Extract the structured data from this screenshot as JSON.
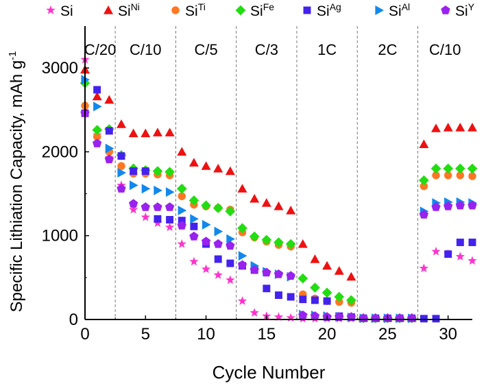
{
  "chart_data": {
    "type": "scatter",
    "xlabel": "Cycle Number",
    "ylabel": "Specific Lithiation Capacity, mAh g",
    "ylabel_sup": "-1",
    "xlim": [
      0,
      32
    ],
    "ylim": [
      0,
      3500
    ],
    "xticks": [
      0,
      5,
      10,
      15,
      20,
      25,
      30
    ],
    "yticks": [
      0,
      1000,
      2000,
      3000
    ],
    "x_tick_labels": [
      "0",
      "5",
      "10",
      "15",
      "20",
      "25",
      "30"
    ],
    "y_tick_labels": [
      "0",
      "1000",
      "2000",
      "3000"
    ],
    "grid": false,
    "legend_position": "top",
    "rate_regions": [
      {
        "label": "C/20",
        "start": 0,
        "end": 2.5
      },
      {
        "label": "C/10",
        "start": 2.5,
        "end": 7.5
      },
      {
        "label": "C/5",
        "start": 7.5,
        "end": 12.5
      },
      {
        "label": "C/3",
        "start": 12.5,
        "end": 17.5
      },
      {
        "label": "1C",
        "start": 17.5,
        "end": 22.5
      },
      {
        "label": "2C",
        "start": 22.5,
        "end": 27.5
      },
      {
        "label": "C/10",
        "start": 27.5,
        "end": 32
      }
    ],
    "series": [
      {
        "name": "Si",
        "sup": "",
        "marker": "star",
        "color": "#ff33cc",
        "x": [
          0,
          1,
          2,
          3,
          4,
          5,
          6,
          7,
          8,
          9,
          10,
          11,
          12,
          13,
          14,
          15,
          16,
          17,
          18,
          19,
          20,
          21,
          22,
          23,
          24,
          25,
          26,
          27,
          28,
          29,
          30,
          31,
          32
        ],
        "y": [
          3100,
          2200,
          1930,
          1600,
          1310,
          1220,
          1150,
          1100,
          900,
          690,
          600,
          530,
          470,
          220,
          80,
          40,
          30,
          20,
          10,
          10,
          10,
          10,
          10,
          10,
          10,
          10,
          10,
          10,
          610,
          810,
          780,
          750,
          700
        ]
      },
      {
        "name": "Si",
        "sup": "Ni",
        "marker": "triangle-up",
        "color": "#ee1111",
        "x": [
          0,
          1,
          2,
          3,
          4,
          5,
          6,
          7,
          8,
          9,
          10,
          11,
          12,
          13,
          14,
          15,
          16,
          17,
          18,
          19,
          20,
          21,
          22,
          23,
          24,
          25,
          26,
          27,
          28,
          29,
          30,
          31,
          32
        ],
        "y": [
          2980,
          2660,
          2620,
          2330,
          2220,
          2220,
          2230,
          2230,
          2000,
          1870,
          1830,
          1800,
          1770,
          1560,
          1440,
          1390,
          1350,
          1300,
          900,
          720,
          640,
          580,
          510,
          20,
          20,
          20,
          20,
          20,
          2090,
          2280,
          2290,
          2290,
          2290
        ]
      },
      {
        "name": "Si",
        "sup": "Ti",
        "marker": "circle",
        "color": "#ff7722",
        "x": [
          0,
          1,
          2,
          3,
          4,
          5,
          6,
          7,
          8,
          9,
          10,
          11,
          12,
          13,
          14,
          15,
          16,
          17,
          18,
          19,
          20,
          21,
          22,
          23,
          24,
          25,
          26,
          27,
          28,
          29,
          30,
          31,
          32
        ],
        "y": [
          2550,
          2180,
          2000,
          1830,
          1740,
          1740,
          1730,
          1720,
          1470,
          1370,
          1350,
          1330,
          1310,
          1040,
          980,
          930,
          890,
          870,
          300,
          250,
          220,
          210,
          200,
          15,
          15,
          15,
          15,
          15,
          1590,
          1720,
          1720,
          1720,
          1710
        ]
      },
      {
        "name": "Si",
        "sup": "Fe",
        "marker": "diamond",
        "color": "#22dd11",
        "x": [
          0,
          1,
          2,
          3,
          4,
          5,
          6,
          7,
          8,
          9,
          10,
          11,
          12,
          13,
          14,
          15,
          16,
          17,
          18,
          19,
          20,
          21,
          22,
          23,
          24,
          25,
          26,
          27,
          28,
          29,
          30,
          31,
          32
        ],
        "y": [
          2820,
          2260,
          2270,
          1960,
          1800,
          1780,
          1770,
          1760,
          1560,
          1420,
          1360,
          1330,
          1290,
          1090,
          990,
          950,
          920,
          900,
          490,
          380,
          320,
          270,
          230,
          15,
          15,
          15,
          15,
          15,
          1660,
          1800,
          1800,
          1800,
          1800
        ]
      },
      {
        "name": "Si",
        "sup": "Ag",
        "marker": "square",
        "color": "#4422ee",
        "x": [
          0,
          1,
          2,
          3,
          4,
          5,
          6,
          7,
          8,
          9,
          10,
          11,
          12,
          13,
          14,
          15,
          16,
          17,
          18,
          19,
          20,
          21,
          22,
          23,
          24,
          25,
          26,
          27,
          28,
          29,
          30,
          31,
          32
        ],
        "y": [
          2460,
          2740,
          2250,
          1950,
          1770,
          1770,
          1200,
          1190,
          1180,
          1110,
          900,
          720,
          670,
          640,
          590,
          370,
          290,
          270,
          240,
          230,
          220,
          40,
          30,
          15,
          15,
          15,
          15,
          15,
          10,
          10,
          780,
          920,
          920
        ]
      },
      {
        "name": "Si",
        "sup": "Al",
        "marker": "triangle-right",
        "color": "#1188ee",
        "x": [
          0,
          1,
          2,
          3,
          4,
          5,
          6,
          7,
          8,
          9,
          10,
          11,
          12,
          13,
          14,
          15,
          16,
          17,
          18,
          19,
          20,
          21,
          22,
          23,
          24,
          25,
          26,
          27,
          28,
          29,
          30,
          31,
          32
        ],
        "y": [
          2860,
          2540,
          2040,
          1750,
          1600,
          1560,
          1540,
          1520,
          1300,
          1200,
          1130,
          1050,
          960,
          760,
          640,
          570,
          540,
          510,
          60,
          50,
          40,
          30,
          25,
          15,
          15,
          15,
          15,
          15,
          1290,
          1390,
          1400,
          1400,
          1390
        ]
      },
      {
        "name": "Si",
        "sup": "Y",
        "marker": "pentagon",
        "color": "#9922ee",
        "x": [
          0,
          1,
          2,
          3,
          4,
          5,
          6,
          7,
          8,
          9,
          10,
          11,
          12,
          13,
          14,
          15,
          16,
          17,
          18,
          19,
          20,
          21,
          22,
          23,
          24,
          25,
          26,
          27,
          28,
          29,
          30,
          31,
          32
        ],
        "y": [
          2460,
          2100,
          1910,
          1560,
          1380,
          1340,
          1340,
          1340,
          1120,
          990,
          930,
          900,
          880,
          650,
          590,
          560,
          540,
          520,
          50,
          40,
          30,
          30,
          30,
          15,
          15,
          15,
          15,
          15,
          1250,
          1340,
          1350,
          1360,
          1360
        ]
      }
    ]
  }
}
